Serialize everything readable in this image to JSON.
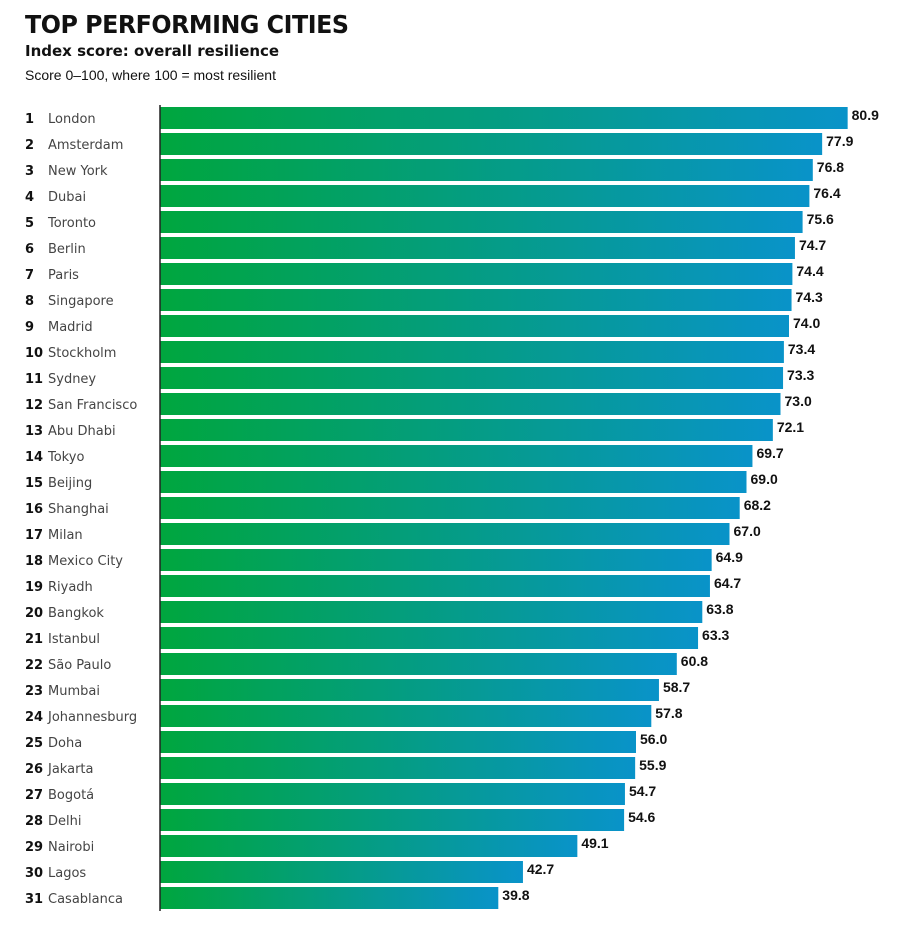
{
  "chart_data": {
    "type": "bar",
    "orientation": "horizontal",
    "title": "TOP PERFORMING CITIES",
    "subtitle": "Index score: overall resilience",
    "note": "Score 0–100, where 100 = most resilient",
    "ranks": [
      1,
      2,
      3,
      4,
      5,
      6,
      7,
      8,
      9,
      10,
      11,
      12,
      13,
      14,
      15,
      16,
      17,
      18,
      19,
      20,
      21,
      22,
      23,
      24,
      25,
      26,
      27,
      28,
      29,
      30,
      31
    ],
    "categories": [
      "London",
      "Amsterdam",
      "New York",
      "Dubai",
      "Toronto",
      "Berlin",
      "Paris",
      "Singapore",
      "Madrid",
      "Stockholm",
      "Sydney",
      "San Francisco",
      "Abu Dhabi",
      "Tokyo",
      "Beijing",
      "Shanghai",
      "Milan",
      "Mexico City",
      "Riyadh",
      "Bangkok",
      "Istanbul",
      "São Paulo",
      "Mumbai",
      "Johannesburg",
      "Doha",
      "Jakarta",
      "Bogotá",
      "Delhi",
      "Nairobi",
      "Lagos",
      "Casablanca"
    ],
    "values": [
      80.9,
      77.9,
      76.8,
      76.4,
      75.6,
      74.7,
      74.4,
      74.3,
      74.0,
      73.4,
      73.3,
      73.0,
      72.1,
      69.7,
      69.0,
      68.2,
      67.0,
      64.9,
      64.7,
      63.8,
      63.3,
      60.8,
      58.7,
      57.8,
      56.0,
      55.9,
      54.7,
      54.6,
      49.1,
      42.7,
      39.8
    ],
    "xlim": [
      0,
      100
    ],
    "grid": false,
    "data_labels": true,
    "colors": {
      "gradient_start": "#00a63e",
      "gradient_end": "#0993c9"
    }
  }
}
